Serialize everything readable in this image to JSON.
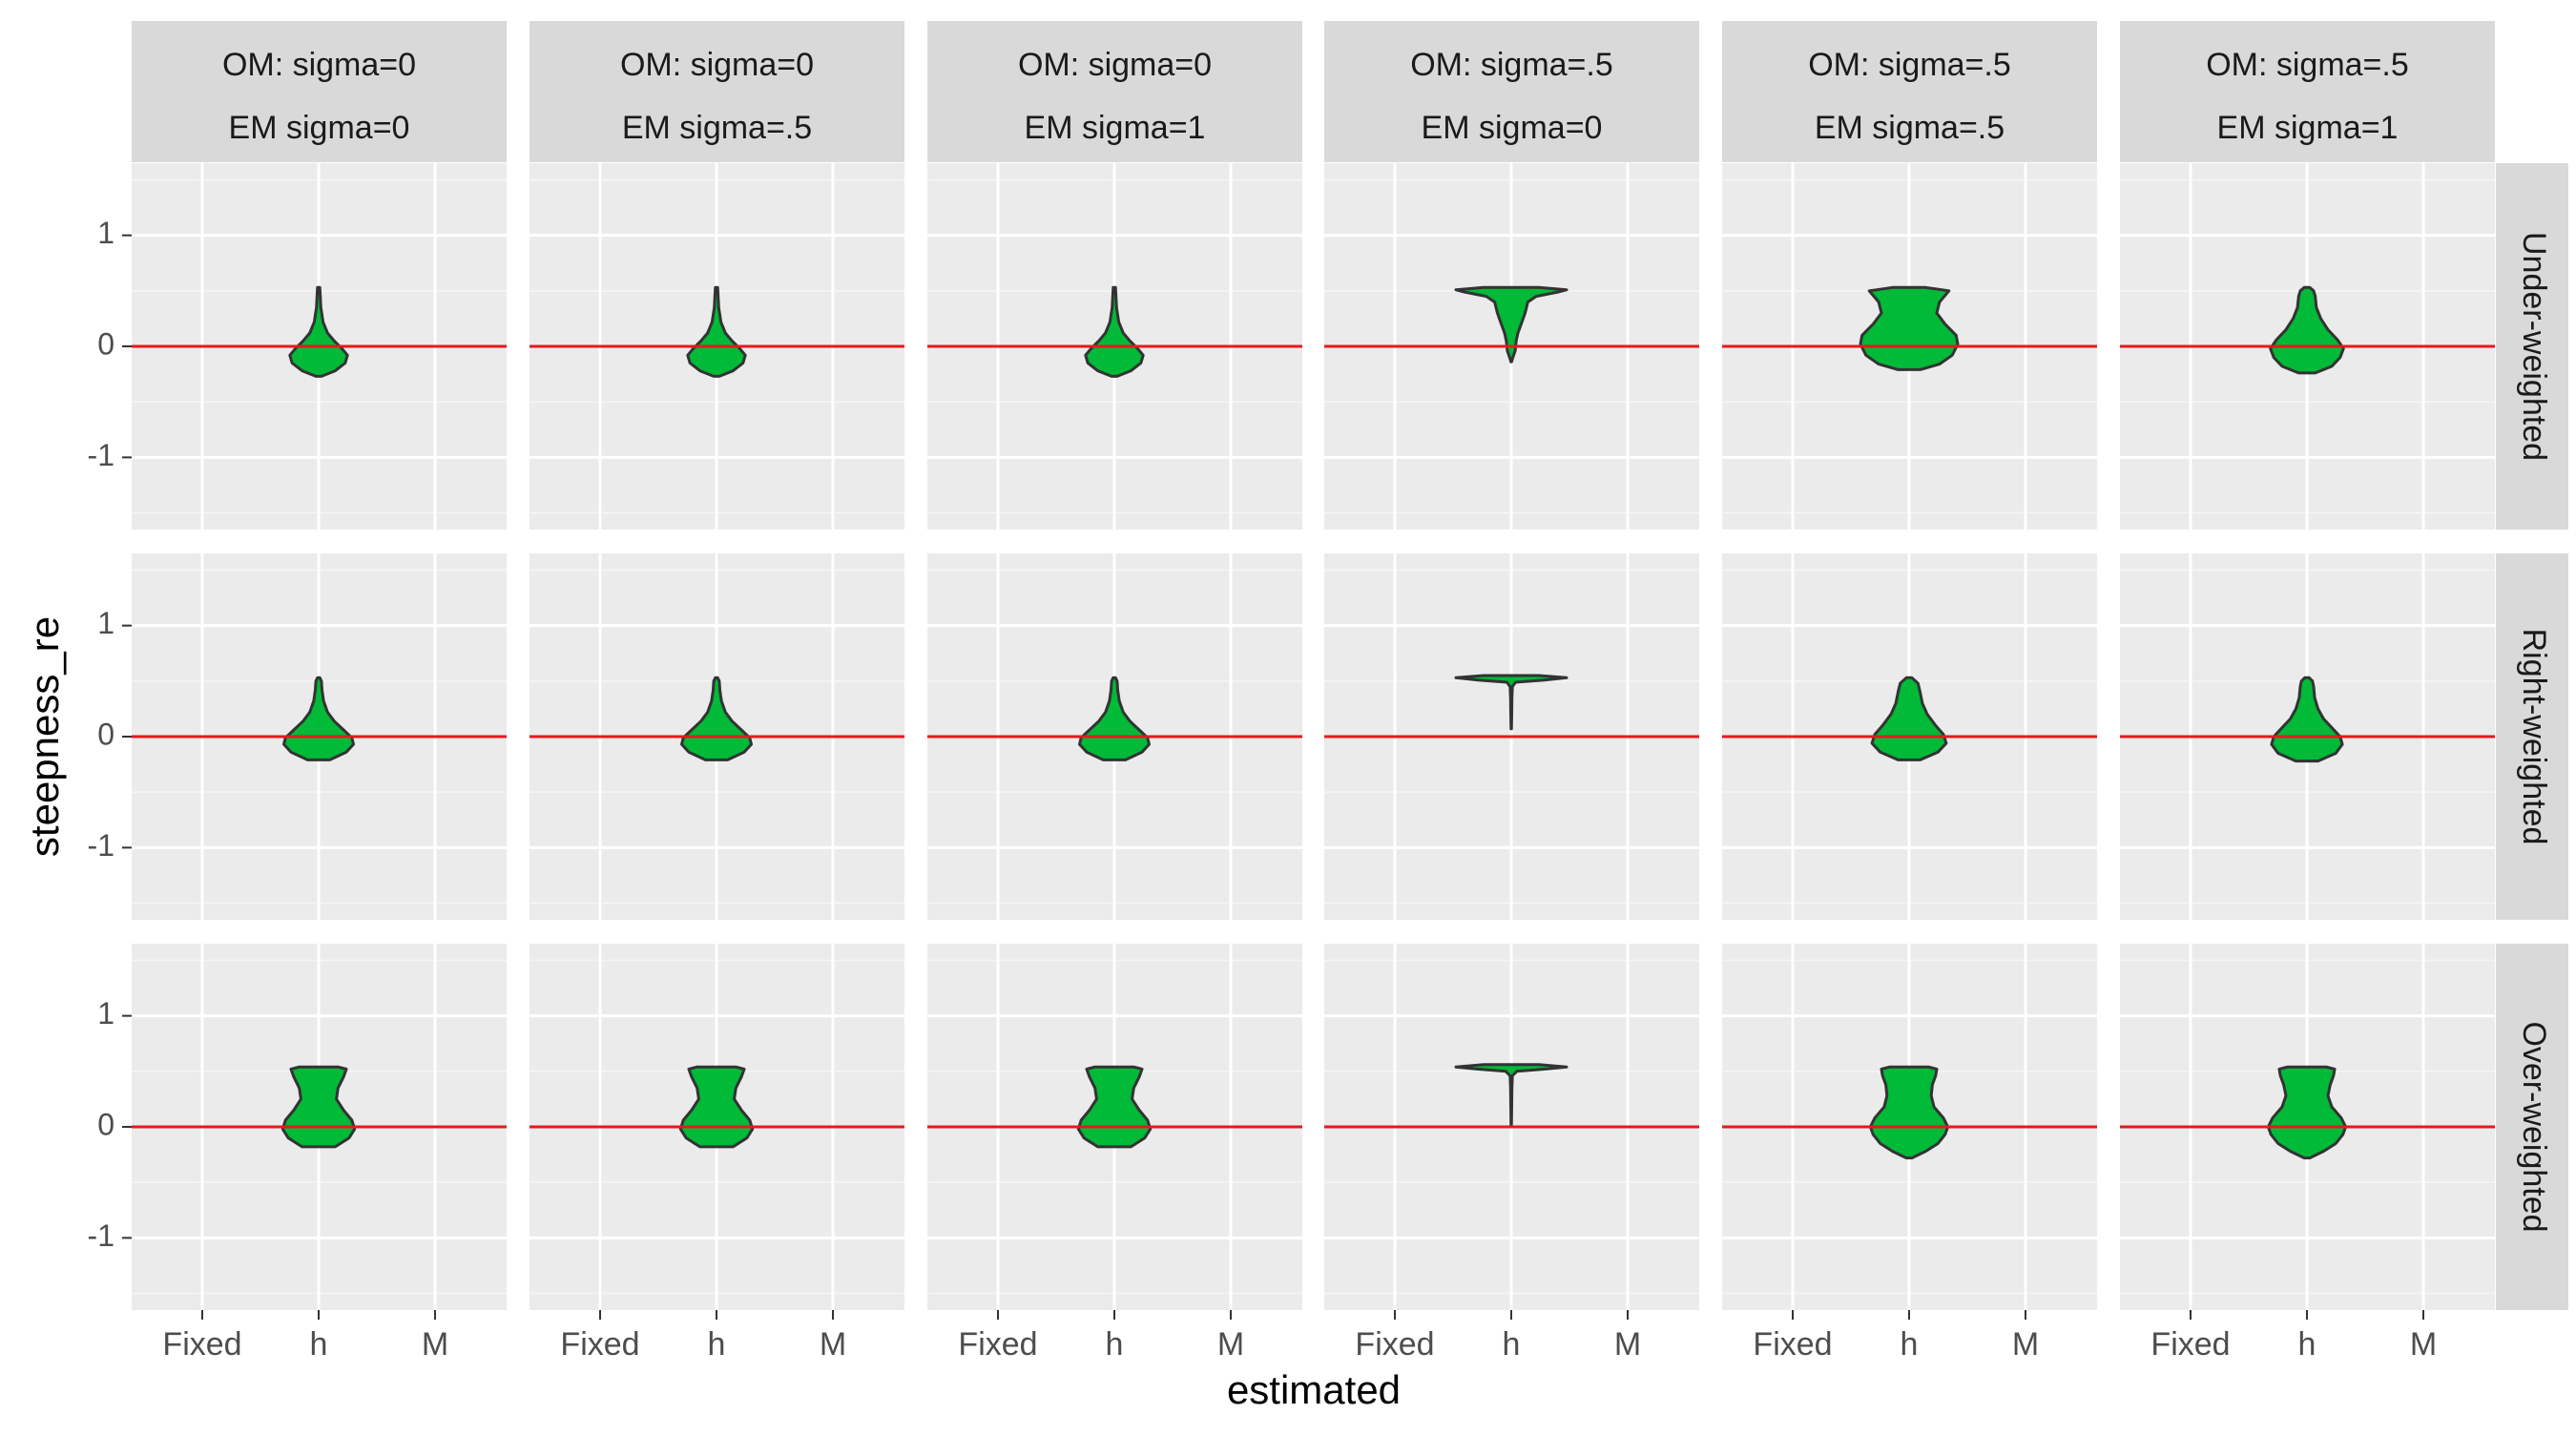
{
  "chart_data": {
    "type": "violin",
    "xlabel": "estimated",
    "ylabel": "steepness_re",
    "x_categories": [
      "Fixed",
      "h",
      "M"
    ],
    "y_ticks": [
      -1,
      0,
      1
    ],
    "ylim": [
      -1.65,
      1.65
    ],
    "reference_line": {
      "y": 0,
      "color": "#e41a1c"
    },
    "fill_color": "#00ba38",
    "outline_color": "#333333",
    "panel_background": "#ebebeb",
    "strip_background": "#d9d9d9",
    "grid": true,
    "column_facets": [
      {
        "line1": "OM: sigma=0",
        "line2": "EM sigma=0"
      },
      {
        "line1": "OM: sigma=0",
        "line2": "EM sigma=.5"
      },
      {
        "line1": "OM: sigma=0",
        "line2": "EM sigma=1"
      },
      {
        "line1": "OM: sigma=.5",
        "line2": "EM sigma=0"
      },
      {
        "line1": "OM: sigma=.5",
        "line2": "EM sigma=.5"
      },
      {
        "line1": "OM: sigma=.5",
        "line2": "EM sigma=1"
      }
    ],
    "row_facets": [
      "Under-weighted",
      "Right-weighted",
      "Over-weighted"
    ],
    "violins": [
      [
        {
          "x": "h",
          "ymin": -0.27,
          "ymax": 0.53,
          "profile": [
            [
              -0.27,
              0.05
            ],
            [
              -0.22,
              0.3
            ],
            [
              -0.15,
              0.48
            ],
            [
              -0.08,
              0.52
            ],
            [
              -0.02,
              0.42
            ],
            [
              0.05,
              0.28
            ],
            [
              0.12,
              0.16
            ],
            [
              0.22,
              0.08
            ],
            [
              0.35,
              0.04
            ],
            [
              0.45,
              0.03
            ],
            [
              0.53,
              0.02
            ]
          ]
        },
        {
          "x": "h",
          "ymin": -0.27,
          "ymax": 0.53,
          "profile": [
            [
              -0.27,
              0.05
            ],
            [
              -0.22,
              0.3
            ],
            [
              -0.15,
              0.48
            ],
            [
              -0.08,
              0.52
            ],
            [
              -0.02,
              0.42
            ],
            [
              0.05,
              0.28
            ],
            [
              0.12,
              0.16
            ],
            [
              0.22,
              0.08
            ],
            [
              0.35,
              0.04
            ],
            [
              0.45,
              0.03
            ],
            [
              0.53,
              0.02
            ]
          ]
        },
        {
          "x": "h",
          "ymin": -0.27,
          "ymax": 0.53,
          "profile": [
            [
              -0.27,
              0.05
            ],
            [
              -0.22,
              0.3
            ],
            [
              -0.15,
              0.48
            ],
            [
              -0.08,
              0.52
            ],
            [
              -0.02,
              0.42
            ],
            [
              0.05,
              0.28
            ],
            [
              0.12,
              0.16
            ],
            [
              0.22,
              0.08
            ],
            [
              0.35,
              0.04
            ],
            [
              0.45,
              0.03
            ],
            [
              0.53,
              0.02
            ]
          ]
        },
        {
          "x": "h",
          "ymin": -0.14,
          "ymax": 0.53,
          "profile": [
            [
              -0.14,
              0.005
            ],
            [
              -0.1,
              0.03
            ],
            [
              -0.04,
              0.07
            ],
            [
              0.05,
              0.09
            ],
            [
              0.12,
              0.12
            ],
            [
              0.2,
              0.18
            ],
            [
              0.3,
              0.25
            ],
            [
              0.4,
              0.3
            ],
            [
              0.45,
              0.45
            ],
            [
              0.49,
              0.85
            ],
            [
              0.51,
              1.0
            ],
            [
              0.53,
              0.5
            ]
          ]
        },
        {
          "x": "h",
          "ymin": -0.21,
          "ymax": 0.53,
          "profile": [
            [
              -0.21,
              0.2
            ],
            [
              -0.16,
              0.55
            ],
            [
              -0.08,
              0.78
            ],
            [
              0.02,
              0.88
            ],
            [
              0.1,
              0.85
            ],
            [
              0.2,
              0.65
            ],
            [
              0.3,
              0.5
            ],
            [
              0.4,
              0.55
            ],
            [
              0.5,
              0.72
            ],
            [
              0.53,
              0.3
            ]
          ]
        },
        {
          "x": "h",
          "ymin": -0.24,
          "ymax": 0.53,
          "profile": [
            [
              -0.24,
              0.15
            ],
            [
              -0.18,
              0.45
            ],
            [
              -0.1,
              0.6
            ],
            [
              -0.02,
              0.66
            ],
            [
              0.06,
              0.55
            ],
            [
              0.15,
              0.38
            ],
            [
              0.25,
              0.25
            ],
            [
              0.35,
              0.17
            ],
            [
              0.45,
              0.15
            ],
            [
              0.5,
              0.12
            ],
            [
              0.53,
              0.05
            ]
          ]
        }
      ],
      [
        {
          "x": "h",
          "ymin": -0.21,
          "ymax": 0.53,
          "profile": [
            [
              -0.21,
              0.2
            ],
            [
              -0.14,
              0.5
            ],
            [
              -0.07,
              0.63
            ],
            [
              -0.01,
              0.6
            ],
            [
              0.06,
              0.45
            ],
            [
              0.14,
              0.28
            ],
            [
              0.22,
              0.16
            ],
            [
              0.32,
              0.09
            ],
            [
              0.42,
              0.06
            ],
            [
              0.5,
              0.05
            ],
            [
              0.53,
              0.02
            ]
          ]
        },
        {
          "x": "h",
          "ymin": -0.21,
          "ymax": 0.53,
          "profile": [
            [
              -0.21,
              0.2
            ],
            [
              -0.14,
              0.5
            ],
            [
              -0.07,
              0.63
            ],
            [
              -0.01,
              0.6
            ],
            [
              0.06,
              0.45
            ],
            [
              0.14,
              0.28
            ],
            [
              0.22,
              0.16
            ],
            [
              0.32,
              0.09
            ],
            [
              0.42,
              0.06
            ],
            [
              0.5,
              0.05
            ],
            [
              0.53,
              0.02
            ]
          ]
        },
        {
          "x": "h",
          "ymin": -0.21,
          "ymax": 0.53,
          "profile": [
            [
              -0.21,
              0.2
            ],
            [
              -0.14,
              0.5
            ],
            [
              -0.07,
              0.63
            ],
            [
              -0.01,
              0.6
            ],
            [
              0.06,
              0.45
            ],
            [
              0.14,
              0.28
            ],
            [
              0.22,
              0.16
            ],
            [
              0.32,
              0.09
            ],
            [
              0.42,
              0.06
            ],
            [
              0.5,
              0.05
            ],
            [
              0.53,
              0.02
            ]
          ]
        },
        {
          "x": "h",
          "ymin": 0.07,
          "ymax": 0.55,
          "profile": [
            [
              0.07,
              0.004
            ],
            [
              0.2,
              0.008
            ],
            [
              0.35,
              0.012
            ],
            [
              0.45,
              0.02
            ],
            [
              0.49,
              0.08
            ],
            [
              0.51,
              0.6
            ],
            [
              0.53,
              1.0
            ],
            [
              0.55,
              0.5
            ]
          ]
        },
        {
          "x": "h",
          "ymin": -0.21,
          "ymax": 0.53,
          "profile": [
            [
              -0.21,
              0.2
            ],
            [
              -0.14,
              0.52
            ],
            [
              -0.06,
              0.67
            ],
            [
              0.02,
              0.62
            ],
            [
              0.1,
              0.48
            ],
            [
              0.2,
              0.33
            ],
            [
              0.3,
              0.24
            ],
            [
              0.4,
              0.2
            ],
            [
              0.48,
              0.16
            ],
            [
              0.53,
              0.05
            ]
          ]
        },
        {
          "x": "h",
          "ymin": -0.22,
          "ymax": 0.53,
          "profile": [
            [
              -0.22,
              0.2
            ],
            [
              -0.15,
              0.52
            ],
            [
              -0.07,
              0.64
            ],
            [
              0.0,
              0.6
            ],
            [
              0.08,
              0.45
            ],
            [
              0.16,
              0.3
            ],
            [
              0.25,
              0.2
            ],
            [
              0.35,
              0.14
            ],
            [
              0.45,
              0.12
            ],
            [
              0.5,
              0.1
            ],
            [
              0.53,
              0.04
            ]
          ]
        }
      ],
      [
        {
          "x": "h",
          "ymin": -0.18,
          "ymax": 0.54,
          "profile": [
            [
              -0.18,
              0.3
            ],
            [
              -0.1,
              0.55
            ],
            [
              -0.02,
              0.65
            ],
            [
              0.06,
              0.6
            ],
            [
              0.15,
              0.45
            ],
            [
              0.25,
              0.32
            ],
            [
              0.35,
              0.35
            ],
            [
              0.45,
              0.45
            ],
            [
              0.52,
              0.5
            ],
            [
              0.54,
              0.35
            ]
          ]
        },
        {
          "x": "h",
          "ymin": -0.18,
          "ymax": 0.54,
          "profile": [
            [
              -0.18,
              0.3
            ],
            [
              -0.1,
              0.55
            ],
            [
              -0.02,
              0.65
            ],
            [
              0.06,
              0.6
            ],
            [
              0.15,
              0.45
            ],
            [
              0.25,
              0.32
            ],
            [
              0.35,
              0.35
            ],
            [
              0.45,
              0.45
            ],
            [
              0.52,
              0.5
            ],
            [
              0.54,
              0.35
            ]
          ]
        },
        {
          "x": "h",
          "ymin": -0.18,
          "ymax": 0.54,
          "profile": [
            [
              -0.18,
              0.3
            ],
            [
              -0.1,
              0.55
            ],
            [
              -0.02,
              0.65
            ],
            [
              0.06,
              0.6
            ],
            [
              0.15,
              0.45
            ],
            [
              0.25,
              0.32
            ],
            [
              0.35,
              0.35
            ],
            [
              0.45,
              0.45
            ],
            [
              0.52,
              0.5
            ],
            [
              0.54,
              0.35
            ]
          ]
        },
        {
          "x": "h",
          "ymin": 0.01,
          "ymax": 0.56,
          "profile": [
            [
              0.01,
              0.004
            ],
            [
              0.2,
              0.008
            ],
            [
              0.35,
              0.012
            ],
            [
              0.46,
              0.02
            ],
            [
              0.5,
              0.1
            ],
            [
              0.52,
              0.6
            ],
            [
              0.54,
              1.0
            ],
            [
              0.56,
              0.5
            ]
          ]
        },
        {
          "x": "h",
          "ymin": -0.28,
          "ymax": 0.54,
          "profile": [
            [
              -0.28,
              0.05
            ],
            [
              -0.22,
              0.3
            ],
            [
              -0.15,
              0.52
            ],
            [
              -0.07,
              0.65
            ],
            [
              0.0,
              0.7
            ],
            [
              0.08,
              0.62
            ],
            [
              0.18,
              0.45
            ],
            [
              0.28,
              0.4
            ],
            [
              0.38,
              0.42
            ],
            [
              0.46,
              0.48
            ],
            [
              0.52,
              0.5
            ],
            [
              0.54,
              0.35
            ]
          ]
        },
        {
          "x": "h",
          "ymin": -0.28,
          "ymax": 0.54,
          "profile": [
            [
              -0.28,
              0.05
            ],
            [
              -0.22,
              0.3
            ],
            [
              -0.15,
              0.52
            ],
            [
              -0.07,
              0.65
            ],
            [
              0.0,
              0.7
            ],
            [
              0.08,
              0.62
            ],
            [
              0.18,
              0.45
            ],
            [
              0.28,
              0.38
            ],
            [
              0.38,
              0.42
            ],
            [
              0.46,
              0.48
            ],
            [
              0.52,
              0.5
            ],
            [
              0.54,
              0.35
            ]
          ]
        }
      ]
    ]
  }
}
